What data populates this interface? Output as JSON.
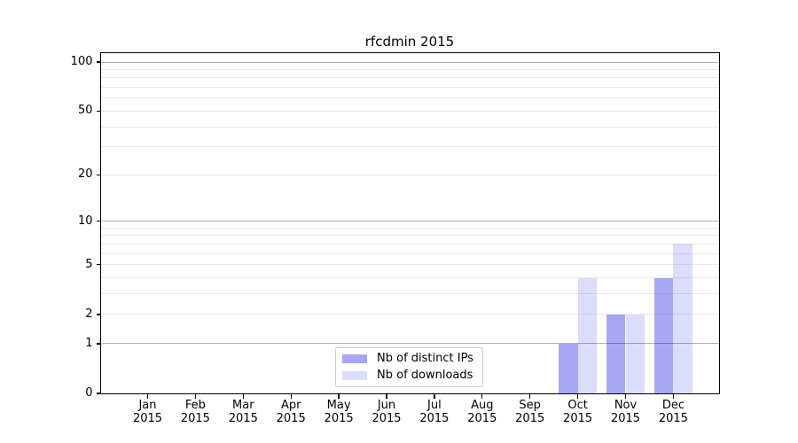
{
  "title": "rfcdmin 2015",
  "colors": {
    "distinct_ips": "rgba(10,10,225,0.36)",
    "downloads": "rgba(10,10,225,0.14)",
    "major_grid": "#b0b0b0",
    "minor_grid": "#e8e8e8",
    "spine": "#000000",
    "legend_border": "#cccccc",
    "text": "#000000",
    "background": "#ffffff"
  },
  "legend": {
    "items": [
      {
        "label": "Nb of distinct IPs"
      },
      {
        "label": "Nb of downloads"
      }
    ]
  },
  "chart_data": {
    "type": "bar",
    "title": "rfcdmin 2015",
    "categories": [
      {
        "month": "Jan",
        "year": "2015"
      },
      {
        "month": "Feb",
        "year": "2015"
      },
      {
        "month": "Mar",
        "year": "2015"
      },
      {
        "month": "Apr",
        "year": "2015"
      },
      {
        "month": "May",
        "year": "2015"
      },
      {
        "month": "Jun",
        "year": "2015"
      },
      {
        "month": "Jul",
        "year": "2015"
      },
      {
        "month": "Aug",
        "year": "2015"
      },
      {
        "month": "Sep",
        "year": "2015"
      },
      {
        "month": "Oct",
        "year": "2015"
      },
      {
        "month": "Nov",
        "year": "2015"
      },
      {
        "month": "Dec",
        "year": "2015"
      }
    ],
    "series": [
      {
        "name": "Nb of distinct IPs",
        "color": "rgba(10,10,225,0.36)",
        "values": [
          0,
          0,
          0,
          0,
          0,
          0,
          0,
          0,
          0,
          1,
          2,
          4
        ]
      },
      {
        "name": "Nb of downloads",
        "color": "rgba(10,10,225,0.14)",
        "values": [
          0,
          0,
          0,
          0,
          0,
          0,
          0,
          0,
          0,
          4,
          2,
          7
        ]
      }
    ],
    "y_axis": {
      "scale": "log1p",
      "min": 0,
      "max": 100,
      "tick_labels": [
        0,
        1,
        2,
        5,
        10,
        20,
        50,
        100
      ],
      "major_gridlines": [
        1,
        10,
        100
      ],
      "minor_gridlines": [
        2,
        3,
        4,
        5,
        6,
        7,
        8,
        9,
        20,
        30,
        40,
        50,
        60,
        70,
        80,
        90
      ]
    },
    "xlabel": "",
    "ylabel": "",
    "grid": true,
    "legend_position": "lower center"
  }
}
